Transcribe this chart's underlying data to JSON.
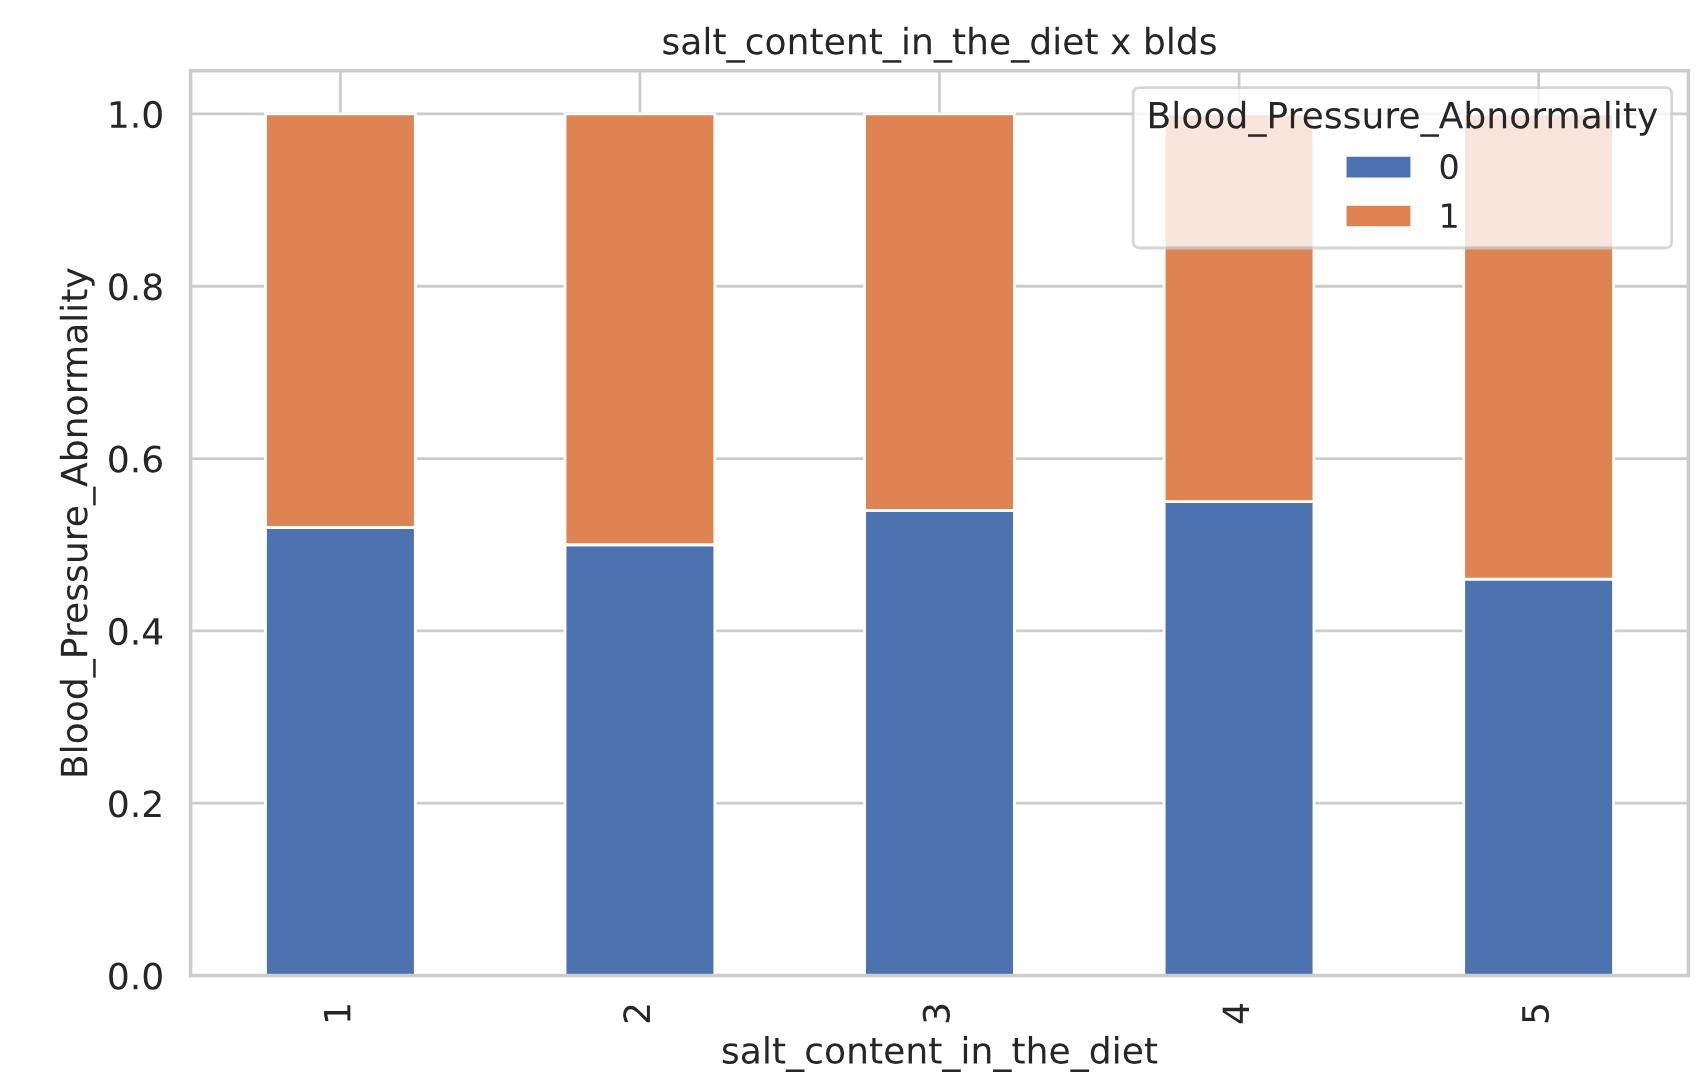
{
  "chart_data": {
    "type": "bar",
    "title": "salt_content_in_the_diet x blds",
    "xlabel": "salt_content_in_the_diet",
    "ylabel": "Blood_Pressure_Abnormality",
    "legend_title": "Blood_Pressure_Abnormality",
    "categories": [
      "1",
      "2",
      "3",
      "4",
      "5"
    ],
    "stacked": true,
    "series": [
      {
        "name": "0",
        "color": "#4c72b0",
        "values": [
          0.52,
          0.5,
          0.54,
          0.55,
          0.46
        ]
      },
      {
        "name": "1",
        "color": "#dd8452",
        "values": [
          0.48,
          0.5,
          0.46,
          0.45,
          0.54
        ]
      }
    ],
    "ylim": [
      0,
      1.05
    ],
    "yticks": [
      {
        "value": 0,
        "label": "0.0"
      },
      {
        "value": 0.2,
        "label": "0.2"
      },
      {
        "value": 0.4,
        "label": "0.4"
      },
      {
        "value": 0.6,
        "label": "0.6"
      },
      {
        "value": 0.8,
        "label": "0.8"
      },
      {
        "value": 1,
        "label": "1.0"
      }
    ],
    "grid": true,
    "legend": "top right"
  }
}
